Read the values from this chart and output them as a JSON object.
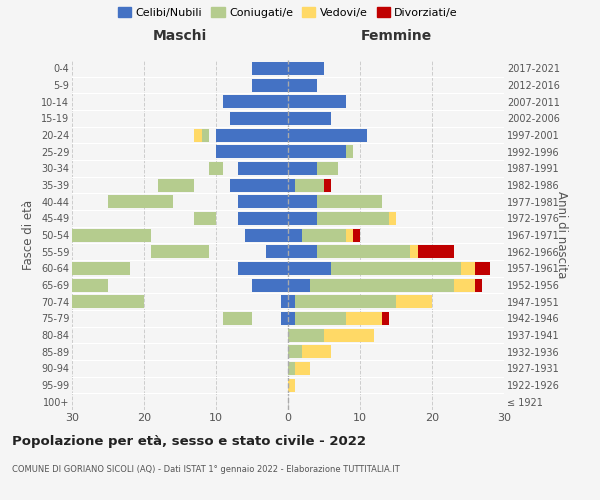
{
  "age_groups": [
    "100+",
    "95-99",
    "90-94",
    "85-89",
    "80-84",
    "75-79",
    "70-74",
    "65-69",
    "60-64",
    "55-59",
    "50-54",
    "45-49",
    "40-44",
    "35-39",
    "30-34",
    "25-29",
    "20-24",
    "15-19",
    "10-14",
    "5-9",
    "0-4"
  ],
  "birth_years": [
    "≤ 1921",
    "1922-1926",
    "1927-1931",
    "1932-1936",
    "1937-1941",
    "1942-1946",
    "1947-1951",
    "1952-1956",
    "1957-1961",
    "1962-1966",
    "1967-1971",
    "1972-1976",
    "1977-1981",
    "1982-1986",
    "1987-1991",
    "1992-1996",
    "1997-2001",
    "2002-2006",
    "2007-2011",
    "2012-2016",
    "2017-2021"
  ],
  "maschi": {
    "celibi": [
      0,
      0,
      0,
      0,
      0,
      1,
      1,
      5,
      7,
      3,
      6,
      7,
      7,
      8,
      7,
      10,
      10,
      8,
      9,
      5,
      5
    ],
    "coniugati": [
      0,
      0,
      0,
      0,
      0,
      4,
      19,
      20,
      15,
      8,
      13,
      3,
      9,
      5,
      2,
      0,
      1,
      0,
      0,
      0,
      0
    ],
    "vedovi": [
      0,
      0,
      0,
      0,
      0,
      1,
      0,
      0,
      0,
      0,
      0,
      0,
      0,
      1,
      0,
      0,
      1,
      0,
      0,
      0,
      0
    ],
    "divorziati": [
      0,
      0,
      0,
      0,
      0,
      0,
      2,
      2,
      0,
      0,
      0,
      0,
      2,
      0,
      0,
      0,
      0,
      0,
      0,
      0,
      0
    ]
  },
  "femmine": {
    "nubili": [
      0,
      0,
      0,
      0,
      0,
      1,
      1,
      3,
      6,
      4,
      2,
      4,
      4,
      1,
      4,
      8,
      11,
      6,
      8,
      4,
      5
    ],
    "coniugate": [
      0,
      0,
      1,
      2,
      5,
      7,
      14,
      20,
      18,
      13,
      6,
      10,
      9,
      4,
      3,
      1,
      0,
      0,
      0,
      0,
      0
    ],
    "vedove": [
      0,
      1,
      2,
      4,
      7,
      5,
      5,
      3,
      2,
      1,
      1,
      1,
      0,
      0,
      0,
      0,
      0,
      0,
      0,
      0,
      0
    ],
    "divorziate": [
      0,
      0,
      0,
      0,
      0,
      1,
      0,
      1,
      2,
      5,
      1,
      0,
      0,
      1,
      0,
      0,
      0,
      0,
      0,
      0,
      0
    ]
  },
  "colors": {
    "celibi_nubili": "#4472c4",
    "coniugati": "#b5cc8e",
    "vedovi": "#ffd966",
    "divorziati": "#c00000"
  },
  "legend_labels": [
    "Celibi/Nubili",
    "Coniugati/e",
    "Vedovi/e",
    "Divorziati/e"
  ],
  "title": "Popolazione per età, sesso e stato civile - 2022",
  "subtitle": "COMUNE DI GORIANO SICOLI (AQ) - Dati ISTAT 1° gennaio 2022 - Elaborazione TUTTITALIA.IT",
  "xlabel_left": "Maschi",
  "xlabel_right": "Femmine",
  "ylabel_left": "Fasce di età",
  "ylabel_right": "Anni di nascita",
  "xlim": 30,
  "background_color": "#f5f5f5"
}
